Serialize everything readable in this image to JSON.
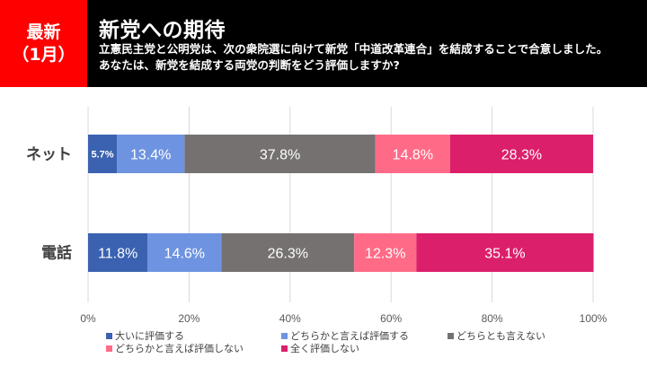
{
  "header": {
    "badge_line1": "最新",
    "badge_line2": "（1月）",
    "title": "新党への期待",
    "subtitle_line1": "立憲民主党と公明党は、次の衆院選に向けて新党「中道改革連合」を結成することで合意しました。",
    "subtitle_line2": "あなたは、新党を結成する両党の判断をどう評価しますか?",
    "badge_color": "#ff0000",
    "background_color": "#000000"
  },
  "chart_data": {
    "type": "bar",
    "orientation": "horizontal",
    "stacked": true,
    "percent_stacked": true,
    "title": "",
    "xlabel": "",
    "ylabel": "",
    "xlim": [
      0,
      100
    ],
    "x_ticks": [
      "0%",
      "20%",
      "40%",
      "60%",
      "80%",
      "100%"
    ],
    "x_tick_values": [
      0,
      20,
      40,
      60,
      80,
      100
    ],
    "grid": true,
    "legend_position": "bottom",
    "categories": [
      "ネット",
      "電話"
    ],
    "series": [
      {
        "name": "大いに評価する",
        "color": "#3a62b0",
        "values": [
          5.7,
          11.8
        ],
        "labels": [
          "5.7%",
          "11.8%"
        ]
      },
      {
        "name": "どちらかと言えば評価する",
        "color": "#6e93e0",
        "values": [
          13.4,
          14.6
        ],
        "labels": [
          "13.4%",
          "14.6%"
        ]
      },
      {
        "name": "どちらとも言えない",
        "color": "#767171",
        "values": [
          37.8,
          26.3
        ],
        "labels": [
          "37.8%",
          "26.3%"
        ]
      },
      {
        "name": "どちらかと言えば評価しない",
        "color": "#ff6b87",
        "values": [
          14.8,
          12.3
        ],
        "labels": [
          "14.8%",
          "12.3%"
        ]
      },
      {
        "name": "全く評価しない",
        "color": "#dc1f6a",
        "values": [
          28.3,
          35.1
        ],
        "labels": [
          "28.3%",
          "35.1%"
        ]
      }
    ]
  }
}
